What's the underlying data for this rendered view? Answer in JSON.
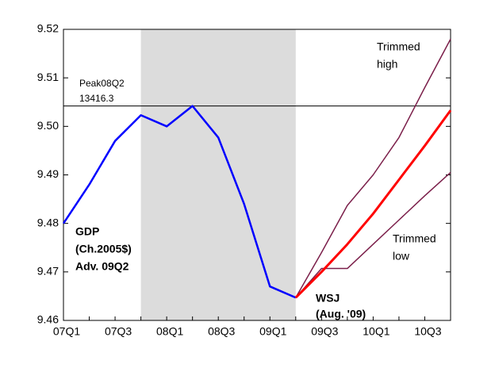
{
  "chart_data": {
    "type": "line",
    "categories": [
      "07Q1",
      null,
      "07Q3",
      null,
      "08Q1",
      null,
      "08Q3",
      null,
      "09Q1",
      null,
      "09Q3",
      null,
      "10Q1",
      null,
      "10Q3",
      null
    ],
    "series": [
      {
        "label": [
          "GDP",
          "(Ch.2005$)",
          "Adv. 09Q2"
        ],
        "color": "#0000ff",
        "values": [
          9.48,
          9.488,
          9.497,
          9.5023,
          9.5,
          9.5042,
          9.4977,
          9.484,
          9.467,
          9.4647,
          null,
          null,
          null,
          null,
          null,
          null
        ]
      },
      {
        "label": [
          "Trimmed",
          "high"
        ],
        "color": "#7b1f4a",
        "values": [
          null,
          null,
          null,
          null,
          null,
          null,
          null,
          null,
          null,
          9.4647,
          9.474,
          9.4837,
          9.49,
          9.4977,
          9.508,
          9.518
        ]
      },
      {
        "label": [
          "WSJ",
          "(Aug. '09)"
        ],
        "color": "#ff0000",
        "values": [
          null,
          null,
          null,
          null,
          null,
          null,
          null,
          null,
          null,
          9.4647,
          9.47,
          9.4757,
          9.482,
          9.489,
          9.496,
          9.5033
        ]
      },
      {
        "label": [
          "Trimmed",
          "low"
        ],
        "color": "#7b1f4a",
        "values": [
          null,
          null,
          null,
          null,
          null,
          null,
          null,
          null,
          null,
          9.4647,
          9.4707,
          9.4707,
          9.4757,
          9.4807,
          9.4857,
          9.4905
        ]
      }
    ],
    "shade": {
      "from": "07Q4",
      "to": "09Q2",
      "color": "#dcdcdc"
    },
    "hline": {
      "value": 9.5042,
      "label": [
        "Peak08Q2",
        "13416.3"
      ]
    },
    "ylim": [
      9.46,
      9.52
    ],
    "yticks": [
      9.46,
      9.47,
      9.48,
      9.49,
      {
        "value": 9.5,
        "label": "9.50"
      },
      9.51,
      9.52
    ]
  }
}
